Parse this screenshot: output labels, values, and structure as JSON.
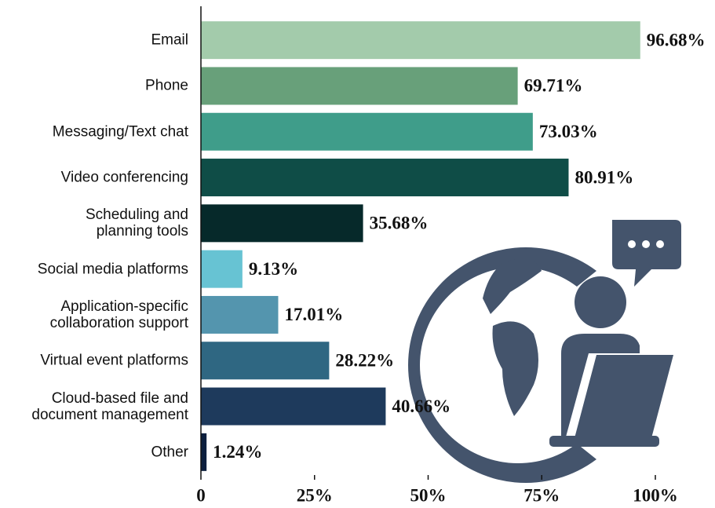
{
  "chart_data": {
    "type": "bar",
    "orientation": "horizontal",
    "categories": [
      "Email",
      "Phone",
      "Messaging/Text chat",
      "Video conferencing",
      "Scheduling and\nplanning tools",
      "Social media platforms",
      "Application-specific\ncollaboration support",
      "Virtual event platforms",
      "Cloud-based file and\ndocument management",
      "Other"
    ],
    "values": [
      96.68,
      69.71,
      73.03,
      80.91,
      35.68,
      9.13,
      17.01,
      28.22,
      40.66,
      1.24
    ],
    "value_labels": [
      "96.68%",
      "69.71%",
      "73.03%",
      "80.91%",
      "35.68%",
      "9.13%",
      "17.01%",
      "28.22%",
      "40.66%",
      "1.24%"
    ],
    "colors": [
      "#a3cbab",
      "#68a07a",
      "#3f9d8a",
      "#0f4d47",
      "#06292a",
      "#67c3d3",
      "#5495ae",
      "#2f6782",
      "#1e3a5c",
      "#0c1f3e"
    ],
    "xlim": [
      0,
      100
    ],
    "xticks": [
      0,
      {
        "value": 25,
        "label": "25%"
      },
      {
        "value": 50,
        "label": "50%"
      },
      {
        "value": 75,
        "label": "75%"
      },
      {
        "value": 100,
        "label": "100%"
      }
    ]
  }
}
